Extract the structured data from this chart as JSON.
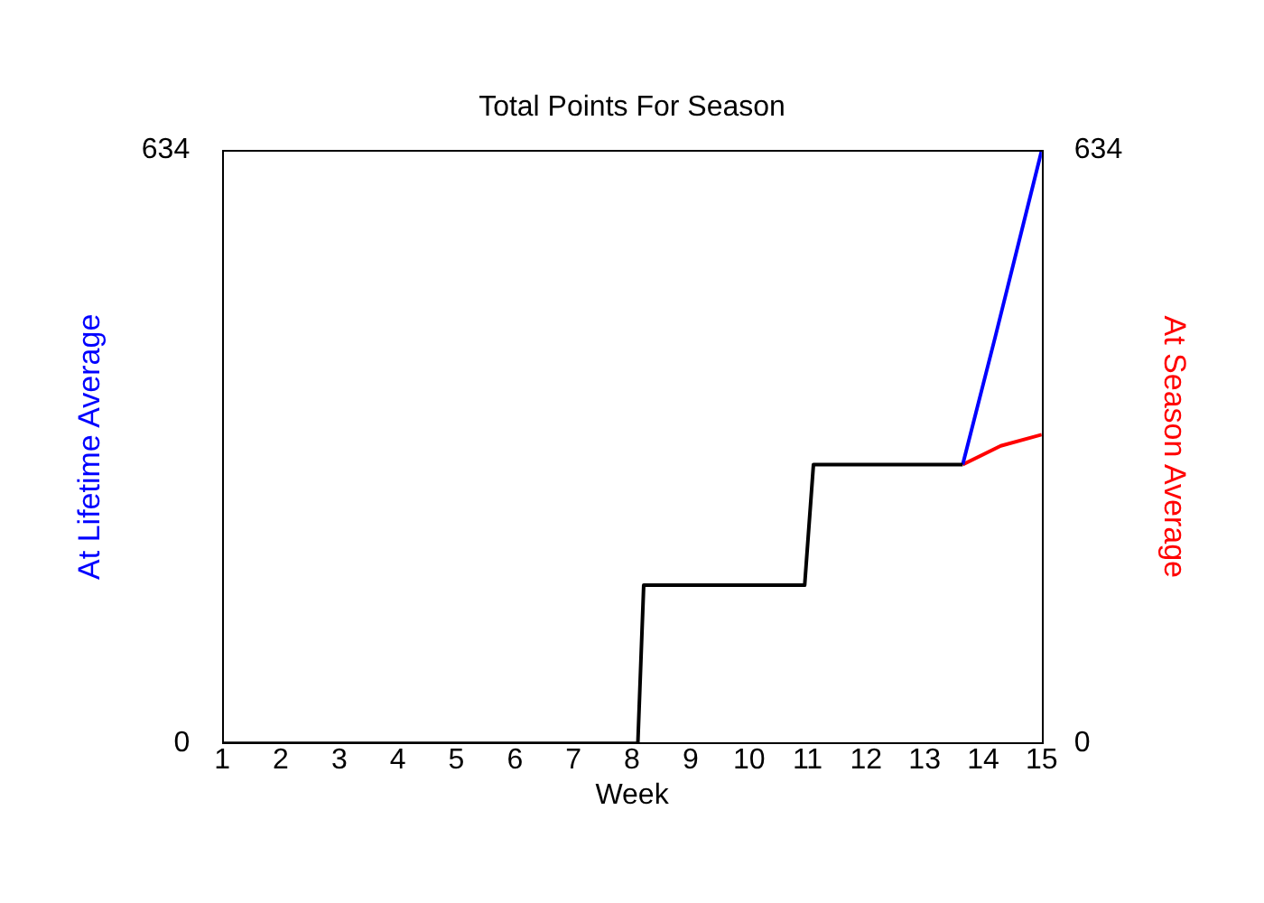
{
  "chart_data": {
    "type": "line",
    "title": "Total Points For Season",
    "xlabel": "Week",
    "ylabel": "At Lifetime Average",
    "y2label": "At Season Average",
    "xlim": [
      1,
      15
    ],
    "xticks": [
      1,
      2,
      3,
      4,
      5,
      6,
      7,
      8,
      9,
      10,
      11,
      12,
      13,
      14,
      15
    ],
    "ylim": [
      0,
      634
    ],
    "yticks": [
      0,
      634
    ],
    "y2lim": [
      0,
      634
    ],
    "y2ticks": [
      0,
      634
    ],
    "grid": false,
    "legend": false,
    "marker": "none",
    "line_style": "solid",
    "series": [
      {
        "color": "#000000",
        "x": [
          1,
          8.1,
          8.2,
          10.95,
          11.1,
          13.65
        ],
        "values": [
          0,
          0,
          169,
          169,
          298,
          298
        ]
      },
      {
        "color": "#0000ff",
        "x": [
          13.65,
          14.2,
          15
        ],
        "values": [
          298,
          433,
          634
        ]
      },
      {
        "color": "#ff0000",
        "axis": "y2",
        "x": [
          13.65,
          14.3,
          15
        ],
        "values": [
          298,
          318,
          330
        ]
      }
    ]
  }
}
